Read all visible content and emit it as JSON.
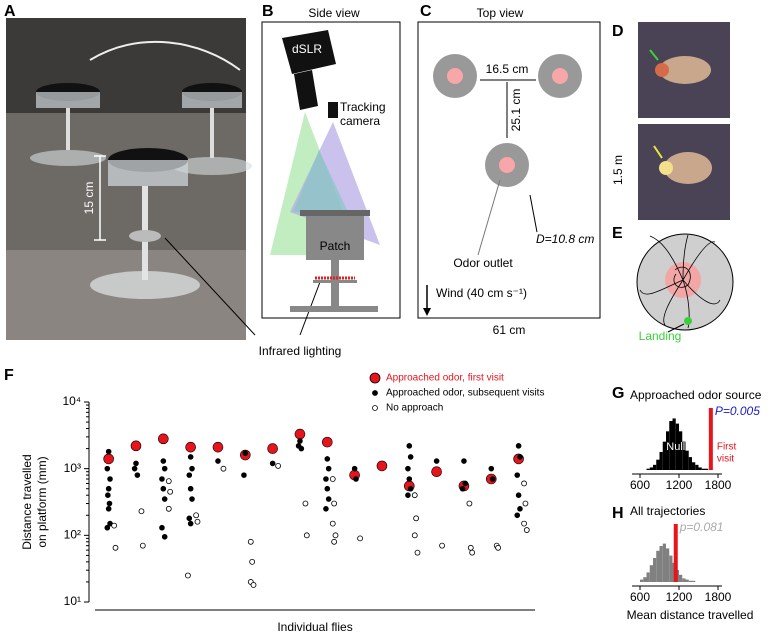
{
  "panel_labels": [
    "A",
    "B",
    "C",
    "D",
    "E",
    "F",
    "G",
    "H"
  ],
  "panel_a": {
    "scale_label": "15 cm",
    "lighting_label": "Infrared lighting"
  },
  "panel_b": {
    "title": "Side view",
    "camera": "dSLR",
    "tracking_camera": [
      "Tracking",
      "camera"
    ],
    "patch": "Patch"
  },
  "panel_c": {
    "title": "Top view",
    "spacing": "16.5 cm",
    "distance": "25.1 cm",
    "diameter": "D=10.8 cm",
    "outlet": "Odor outlet",
    "wind": "Wind (40 cm s⁻¹)",
    "width": "61 cm",
    "height": "1.5 m"
  },
  "panel_e": {
    "landing": "Landing"
  },
  "chart_data": [
    {
      "type": "scatter",
      "y_label": [
        "Distance travelled",
        "on platform (mm)"
      ],
      "x_label": "Individual flies",
      "log_scale_y": true,
      "xlim": [
        0.5,
        16.6
      ],
      "ylim": [
        10,
        10000
      ],
      "yticks": [
        {
          "value": 10,
          "label": "10¹"
        },
        {
          "value": 100,
          "label": "10²"
        },
        {
          "value": 1000,
          "label": "10³"
        },
        {
          "value": 10000,
          "label": "10⁴"
        }
      ],
      "series": [
        {
          "name": "Approached odor, first visit",
          "color": "#e8141b",
          "marker": "filled-large",
          "x": [
            1,
            2,
            3,
            4,
            5,
            6,
            7,
            8,
            9,
            10,
            11,
            12,
            13,
            14,
            15,
            16
          ],
          "values": [
            1400,
            2200,
            2800,
            2100,
            2100,
            1600,
            2000,
            3300,
            2500,
            800,
            1100,
            550,
            900,
            550,
            700,
            1400
          ]
        },
        {
          "name": "Approached odor, subsequent visits",
          "color": "#000000",
          "marker": "filled",
          "x": [
            1.0,
            0.95,
            1.05,
            1.0,
            0.97,
            1.03,
            1.0,
            1.05,
            0.95,
            2.0,
            2.05,
            1.95,
            3.0,
            3.05,
            2.95,
            3.0,
            3.05,
            2.95,
            3.05,
            4.0,
            4.05,
            3.95,
            4.0,
            4.05,
            3.95,
            4.0,
            5.0,
            6.0,
            5.95,
            7.0,
            8.0,
            7.95,
            8.05,
            9.0,
            9.05,
            8.95,
            9.0,
            9.05,
            8.95,
            10.0,
            10.05,
            12.0,
            12.05,
            11.95,
            12.0,
            12.05,
            11.95,
            13.0,
            14.0,
            14.05,
            13.95,
            15.0,
            15.05,
            16.0,
            16.05,
            15.95,
            16.0,
            16.05,
            15.95
          ],
          "values": [
            1800,
            1000,
            700,
            500,
            400,
            300,
            250,
            150,
            130,
            1200,
            800,
            1000,
            1300,
            1000,
            700,
            500,
            350,
            130,
            95,
            1500,
            1000,
            800,
            500,
            350,
            180,
            150,
            1300,
            1700,
            800,
            1200,
            2600,
            2200,
            2000,
            1400,
            1000,
            700,
            500,
            350,
            250,
            1000,
            700,
            2200,
            1500,
            1000,
            700,
            500,
            400,
            1300,
            1300,
            600,
            500,
            1000,
            700,
            2200,
            1500,
            800,
            400,
            250,
            200
          ]
        },
        {
          "name": "No approach",
          "color": "#000000",
          "marker": "open",
          "x": [
            1.2,
            1.25,
            2.2,
            2.25,
            3.2,
            3.25,
            3.2,
            4.2,
            4.25,
            3.9,
            5.2,
            6.2,
            6.25,
            6.2,
            6.3,
            7.2,
            8.2,
            8.25,
            9.2,
            9.25,
            9.2,
            9.3,
            9.25,
            10.2,
            12.2,
            12.25,
            12.2,
            12.3,
            13.2,
            14.2,
            14.25,
            14.3,
            15.2,
            15.25,
            16.2,
            16.25,
            16.2,
            16.3
          ],
          "values": [
            140,
            65,
            230,
            70,
            650,
            450,
            250,
            200,
            160,
            25,
            1000,
            80,
            40,
            20,
            18,
            1100,
            300,
            100,
            700,
            300,
            150,
            100,
            80,
            90,
            400,
            180,
            100,
            55,
            70,
            300,
            65,
            55,
            70,
            65,
            600,
            300,
            150,
            120
          ]
        }
      ]
    },
    {
      "type": "histogram",
      "title": "Approached odor source",
      "bins": [
        700,
        750,
        800,
        850,
        900,
        950,
        1000,
        1050,
        1100,
        1150,
        1200,
        1250,
        1300,
        1350,
        1400,
        1450,
        1500,
        1550,
        1600,
        1650,
        1700
      ],
      "values": [
        1,
        2,
        4,
        8,
        14,
        22,
        30,
        38,
        40,
        36,
        30,
        22,
        15,
        10,
        6,
        4,
        2,
        1,
        1,
        0
      ],
      "color": "#000000",
      "xlim": [
        600,
        1800
      ],
      "xticks": [
        600,
        1200,
        1800
      ],
      "ylim": [
        0,
        45
      ],
      "observed": 1690,
      "observed_color": "#e8141b",
      "null_label": "Null",
      "observed_label": [
        "First",
        "visit"
      ],
      "p_label": "P=0.005",
      "p_color": "#1a1acc"
    },
    {
      "type": "histogram",
      "title": "All trajectories",
      "bins": [
        600,
        650,
        700,
        750,
        800,
        850,
        900,
        950,
        1000,
        1050,
        1100,
        1150,
        1200,
        1250,
        1300,
        1350,
        1400,
        1450
      ],
      "values": [
        2,
        4,
        8,
        14,
        20,
        26,
        30,
        32,
        28,
        22,
        16,
        10,
        6,
        3,
        2,
        1,
        1
      ],
      "color": "#808080",
      "xlim": [
        600,
        1800
      ],
      "xticks": [
        600,
        1200,
        1800
      ],
      "ylim": [
        0,
        45
      ],
      "observed": 1150,
      "observed_color": "#e8141b",
      "p_label": "p=0.081",
      "p_color": "#aaaaaa",
      "x_label": "Mean distance travelled"
    }
  ]
}
